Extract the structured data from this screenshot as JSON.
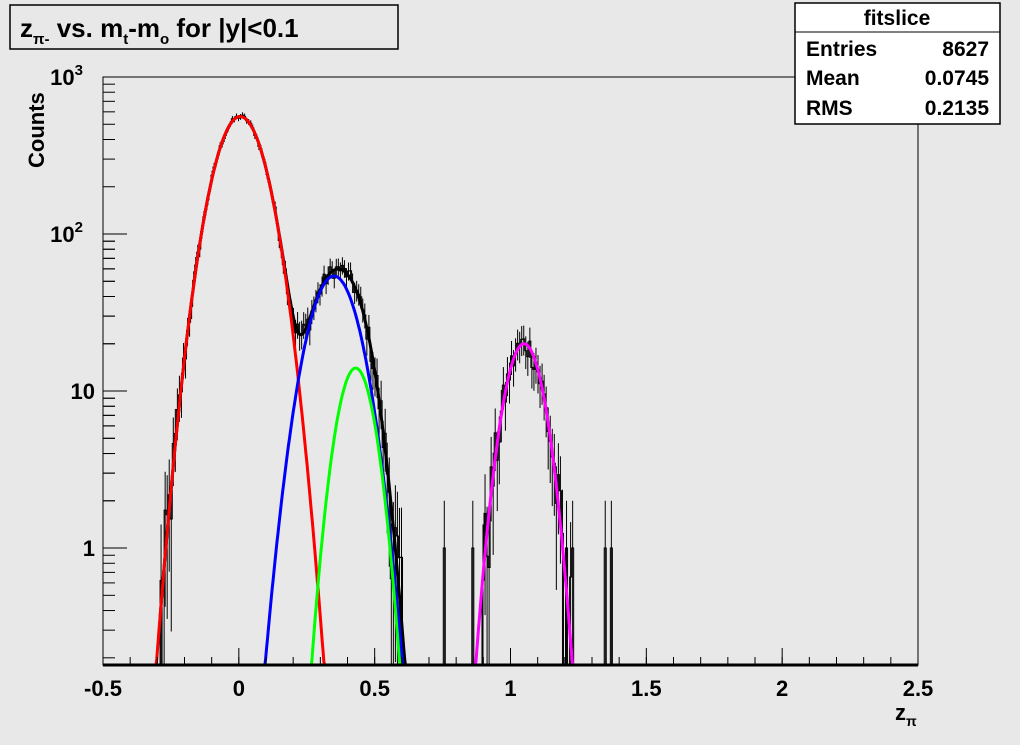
{
  "chart_data": {
    "type": "line",
    "title": "z_{π-} vs. m_t-m_o for |y|<0.1",
    "title_parts": {
      "z": "z",
      "z_sub": "π-",
      "mid": " vs. m",
      "m_sub": "t",
      "dash": "-m",
      "o_sub": "o",
      "tail": " for |y|<0.1"
    },
    "xlabel": "z",
    "xlabel_sub": "π",
    "ylabel": "Counts",
    "xlim": [
      -0.5,
      2.5
    ],
    "ylim": [
      0.18,
      1000
    ],
    "yscale": "log",
    "xticks": [
      {
        "v": -0.5,
        "label": "-0.5"
      },
      {
        "v": 0,
        "label": "0"
      },
      {
        "v": 0.5,
        "label": "0.5"
      },
      {
        "v": 1,
        "label": "1"
      },
      {
        "v": 1.5,
        "label": "1.5"
      },
      {
        "v": 2,
        "label": "2"
      },
      {
        "v": 2.5,
        "label": "2.5"
      }
    ],
    "yticks": [
      {
        "v": 1,
        "label": "1"
      },
      {
        "v": 10,
        "label": "10"
      },
      {
        "v": 100,
        "base": "10",
        "exp": "2"
      },
      {
        "v": 1000,
        "base": "10",
        "exp": "3"
      }
    ],
    "stats_box": {
      "title": "fitslice",
      "rows": [
        {
          "label": "Entries",
          "value": "8627"
        },
        {
          "label": "Mean",
          "value": "0.0745"
        },
        {
          "label": "RMS",
          "value": "0.2135"
        }
      ]
    },
    "histogram": {
      "color": "#000000",
      "bin_width": 0.0075,
      "peaks": [
        {
          "A": 560,
          "mu": 0.005,
          "sigma": 0.077
        },
        {
          "A": 54,
          "mu": 0.35,
          "sigma": 0.075
        },
        {
          "A": 14,
          "mu": 0.43,
          "sigma": 0.055
        },
        {
          "A": 20,
          "mu": 1.05,
          "sigma": 0.058
        }
      ],
      "range": [
        -0.29,
        1.44
      ]
    },
    "series": [
      {
        "color": "#000000",
        "type": "total_fit",
        "range": [
          -0.29,
          0.62
        ]
      },
      {
        "color": "#ff0000",
        "type": "gaussian",
        "A": 560,
        "mu": 0.005,
        "sigma": 0.077,
        "range": [
          -0.32,
          0.36
        ]
      },
      {
        "color": "#0000ff",
        "type": "gaussian",
        "A": 54,
        "mu": 0.35,
        "sigma": 0.075,
        "range": [
          0.0,
          0.66
        ]
      },
      {
        "color": "#00ff00",
        "type": "gaussian",
        "A": 14,
        "mu": 0.43,
        "sigma": 0.055,
        "range": [
          0.15,
          0.72
        ]
      },
      {
        "color": "#ff00ff",
        "type": "gaussian",
        "A": 20,
        "mu": 1.05,
        "sigma": 0.058,
        "range": [
          0.78,
          1.38
        ]
      }
    ],
    "grid": false,
    "legend": "none"
  }
}
